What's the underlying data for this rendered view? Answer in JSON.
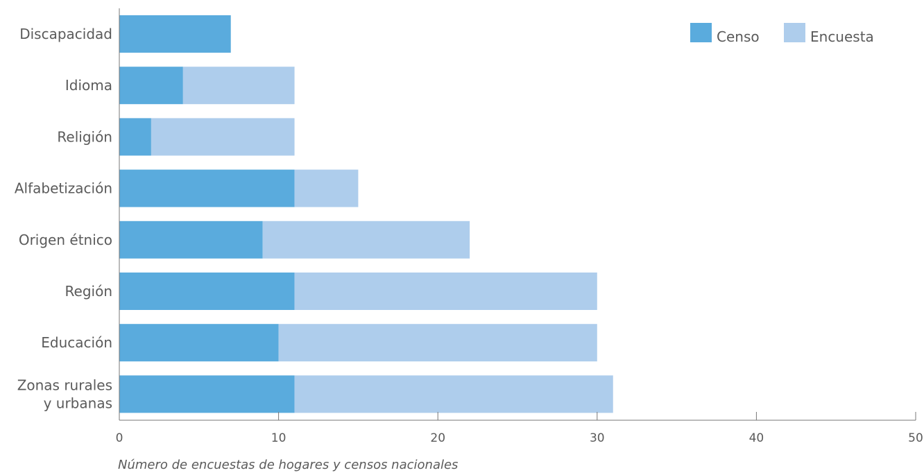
{
  "chart_data": {
    "type": "bar",
    "orientation": "horizontal",
    "stacked": true,
    "categories": [
      [
        "Discapacidad"
      ],
      [
        "Idioma"
      ],
      [
        "Religión"
      ],
      [
        "Alfabetización"
      ],
      [
        "Origen étnico"
      ],
      [
        "Región"
      ],
      [
        "Educación"
      ],
      [
        "Zonas rurales",
        "y urbanas"
      ]
    ],
    "series": [
      {
        "name": "Censo",
        "color": "#5aabdd",
        "values": [
          7,
          4,
          2,
          11,
          9,
          11,
          10,
          11
        ]
      },
      {
        "name": "Encuesta",
        "color": "#aecdec",
        "values": [
          0,
          7,
          9,
          4,
          13,
          19,
          20,
          20
        ]
      }
    ],
    "xlabel": "Número de encuestas de hogares y censos nacionales",
    "ylabel": "",
    "xlim": [
      0,
      50
    ],
    "xticks": [
      0,
      10,
      20,
      30,
      40,
      50
    ],
    "grid": false,
    "legend_position": "top-right"
  }
}
